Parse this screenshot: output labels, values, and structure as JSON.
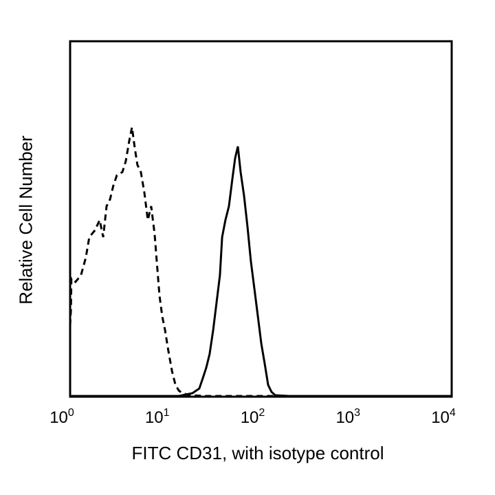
{
  "chart_data": {
    "type": "line",
    "title": "",
    "xlabel": "FITC CD31, with isotype control",
    "ylabel": "Relative Cell Number",
    "x_scale": "log",
    "xlim": [
      1,
      10000
    ],
    "ylim": [
      0,
      100
    ],
    "y_units": "relative (no tick labels)",
    "grid": false,
    "x_ticks": [
      {
        "base": "10",
        "exp": "0",
        "value": 1
      },
      {
        "base": "10",
        "exp": "1",
        "value": 10
      },
      {
        "base": "10",
        "exp": "2",
        "value": 100
      },
      {
        "base": "10",
        "exp": "3",
        "value": 1000
      },
      {
        "base": "10",
        "exp": "4",
        "value": 10000
      }
    ],
    "series": [
      {
        "style": "dashed",
        "color": "#000000",
        "x": [
          1.0,
          1.02,
          1.03,
          1.14,
          1.3,
          1.46,
          1.59,
          1.82,
          2.04,
          2.22,
          2.41,
          2.62,
          2.84,
          3.09,
          3.53,
          3.83,
          4.17,
          4.45,
          4.76,
          5.08,
          5.52,
          6.0,
          6.52,
          7.08,
          7.69,
          8.09,
          8.65,
          9.24,
          9.88,
          10.7,
          11.7,
          12.7,
          13.8,
          15.0,
          17.7,
          26.7,
          141,
          738,
          10000
        ],
        "y": [
          20.0,
          24.6,
          33.3,
          32.3,
          34.2,
          39.1,
          44.9,
          46.8,
          49.7,
          44.9,
          53.6,
          55.5,
          59.4,
          62.3,
          63.2,
          66.2,
          72.0,
          75.8,
          70.0,
          65.2,
          63.2,
          57.4,
          49.7,
          53.6,
          45.8,
          38.1,
          28.4,
          22.6,
          18.8,
          13.0,
          7.2,
          3.3,
          1.7,
          1.0,
          0.4,
          0.2,
          0.2,
          0.2,
          0.2
        ]
      },
      {
        "style": "solid",
        "color": "#000000",
        "x": [
          1.0,
          13.8,
          19.2,
          22.6,
          24.6,
          26.7,
          29.0,
          31.6,
          34.3,
          37.2,
          39.2,
          42.5,
          46.2,
          50.2,
          53.7,
          57.4,
          61.3,
          66.6,
          72.3,
          78.5,
          85.4,
          92.9,
          101,
          110,
          119,
          129,
          141,
          196,
          10000
        ],
        "y": [
          0.2,
          0.2,
          1.0,
          2.3,
          5.2,
          8.1,
          12.0,
          18.8,
          26.5,
          34.2,
          44.9,
          49.7,
          53.6,
          61.3,
          67.1,
          70.4,
          63.2,
          56.5,
          47.8,
          38.1,
          30.4,
          22.6,
          14.9,
          9.1,
          3.3,
          1.4,
          0.4,
          0.2,
          0.2
        ]
      }
    ]
  }
}
